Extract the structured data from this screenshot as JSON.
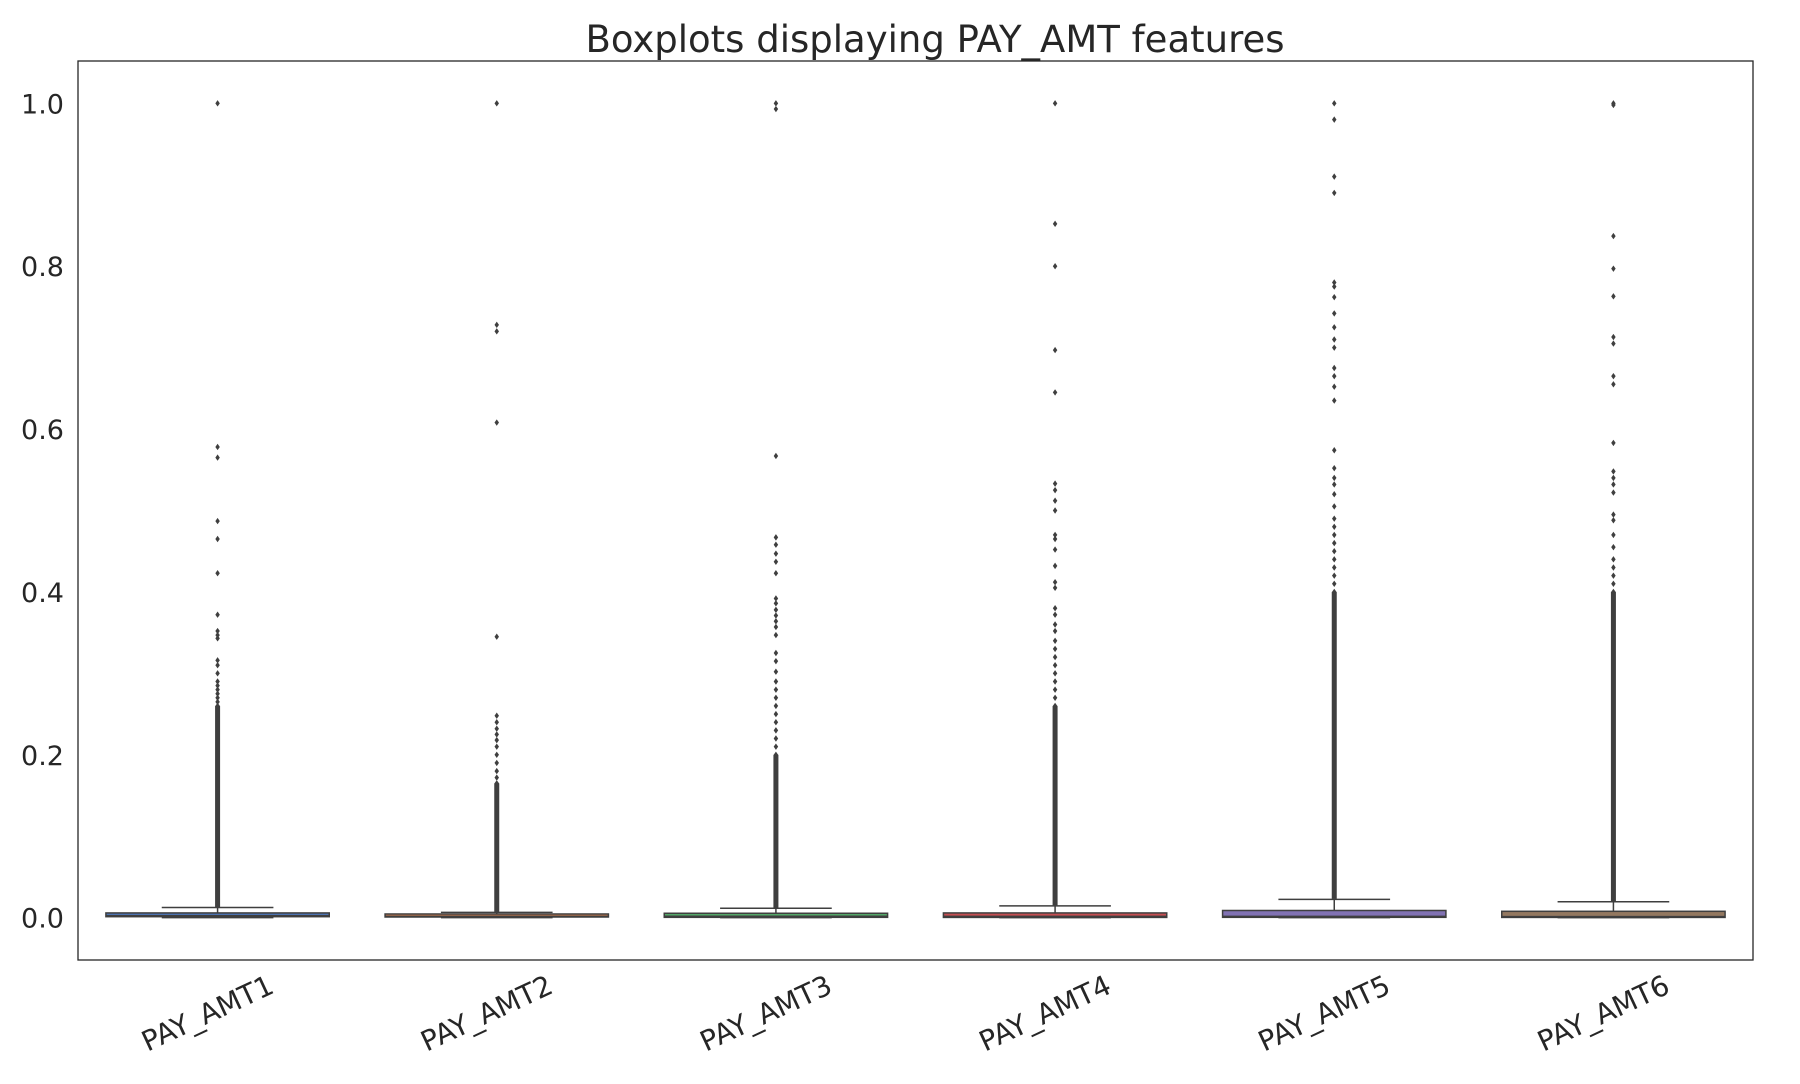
{
  "chart_data": {
    "type": "boxplot",
    "title": "Boxplots displaying PAY_AMT features",
    "xlabel": "",
    "ylabel": "",
    "ylim": [
      -0.052,
      1.052
    ],
    "yticks": [
      "0.0",
      "0.2",
      "0.4",
      "0.6",
      "0.8",
      "1.0"
    ],
    "grid": false,
    "legend": "none",
    "categories": [
      "PAY_AMT1",
      "PAY_AMT2",
      "PAY_AMT3",
      "PAY_AMT4",
      "PAY_AMT5",
      "PAY_AMT6"
    ],
    "boxes": [
      {
        "name": "PAY_AMT1",
        "color": "#4c72b0",
        "whisker_low": 0.0,
        "q1": 0.0012,
        "median": 0.0024,
        "q3": 0.0058,
        "whisker_high": 0.0125,
        "outliers": [
          1.0,
          0.578,
          0.565,
          0.487,
          0.465,
          0.423,
          0.372,
          0.352,
          0.347,
          0.343,
          0.316,
          0.31,
          0.3,
          0.29,
          0.285,
          0.28,
          0.275,
          0.27,
          0.265,
          0.26
        ],
        "outlier_band": [
          0.013,
          0.26
        ]
      },
      {
        "name": "PAY_AMT2",
        "color": "#dd8452",
        "whisker_low": 0.0,
        "q1": 0.0008,
        "median": 0.0018,
        "q3": 0.0045,
        "whisker_high": 0.0065,
        "outliers": [
          1.0,
          0.728,
          0.72,
          0.608,
          0.345,
          0.248,
          0.24,
          0.232,
          0.225,
          0.218,
          0.21,
          0.2,
          0.19,
          0.18,
          0.172,
          0.165
        ],
        "outlier_band": [
          0.007,
          0.165
        ]
      },
      {
        "name": "PAY_AMT3",
        "color": "#55a868",
        "whisker_low": 0.0,
        "q1": 0.0004,
        "median": 0.0017,
        "q3": 0.0054,
        "whisker_high": 0.0115,
        "outliers": [
          1.0,
          0.993,
          0.567,
          0.467,
          0.458,
          0.447,
          0.437,
          0.423,
          0.392,
          0.386,
          0.378,
          0.371,
          0.364,
          0.357,
          0.347,
          0.325,
          0.315,
          0.302,
          0.29,
          0.28,
          0.27,
          0.26,
          0.25,
          0.24,
          0.23,
          0.22,
          0.21,
          0.2
        ],
        "outlier_band": [
          0.012,
          0.2
        ]
      },
      {
        "name": "PAY_AMT4",
        "color": "#c44e52",
        "whisker_low": 0.0,
        "q1": 0.0003,
        "median": 0.0015,
        "q3": 0.0058,
        "whisker_high": 0.0145,
        "outliers": [
          1.0,
          0.852,
          0.8,
          0.697,
          0.645,
          0.533,
          0.525,
          0.512,
          0.5,
          0.47,
          0.465,
          0.452,
          0.432,
          0.412,
          0.405,
          0.38,
          0.372,
          0.36,
          0.352,
          0.34,
          0.33,
          0.32,
          0.31,
          0.3,
          0.29,
          0.28,
          0.27,
          0.26
        ],
        "outlier_band": [
          0.015,
          0.26
        ]
      },
      {
        "name": "PAY_AMT5",
        "color": "#8172b3",
        "whisker_low": 0.0,
        "q1": 0.0004,
        "median": 0.0015,
        "q3": 0.0088,
        "whisker_high": 0.0225,
        "outliers": [
          1.0,
          0.98,
          0.91,
          0.89,
          0.78,
          0.775,
          0.762,
          0.742,
          0.725,
          0.71,
          0.7,
          0.675,
          0.665,
          0.652,
          0.635,
          0.574,
          0.552,
          0.54,
          0.532,
          0.52,
          0.505,
          0.49,
          0.48,
          0.47,
          0.46,
          0.45,
          0.44,
          0.43,
          0.42,
          0.41,
          0.4
        ],
        "outlier_band": [
          0.023,
          0.4
        ]
      },
      {
        "name": "PAY_AMT6",
        "color": "#937860",
        "whisker_low": 0.0,
        "q1": 0.0003,
        "median": 0.0013,
        "q3": 0.0078,
        "whisker_high": 0.0195,
        "outliers": [
          1.0,
          0.998,
          0.837,
          0.797,
          0.763,
          0.713,
          0.705,
          0.665,
          0.655,
          0.583,
          0.548,
          0.54,
          0.532,
          0.522,
          0.495,
          0.488,
          0.47,
          0.455,
          0.44,
          0.43,
          0.42,
          0.41,
          0.4
        ],
        "outlier_band": [
          0.02,
          0.4
        ]
      }
    ]
  }
}
